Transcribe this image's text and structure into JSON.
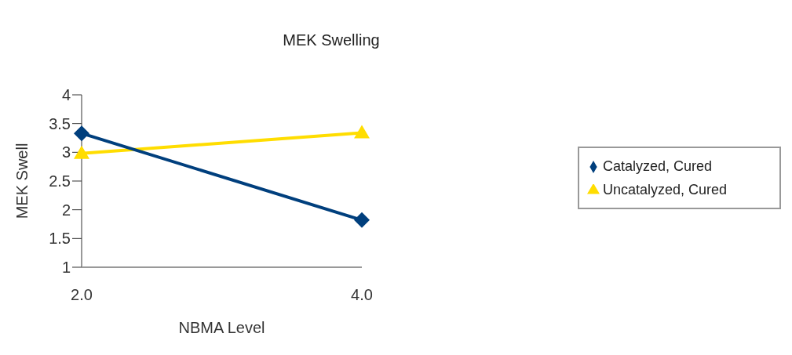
{
  "chart_data": {
    "type": "line",
    "title": "MEK Swelling",
    "xlabel": "NBMA Level",
    "ylabel": "MEK Swell",
    "categories": [
      "2.0",
      "4.0"
    ],
    "series": [
      {
        "name": "Uncatalyzed, Cured",
        "color": "#ffdd00",
        "marker": "triangle",
        "values": [
          2.98,
          3.34
        ]
      },
      {
        "name": "Catalyzed, Cured",
        "color": "#003f7d",
        "marker": "diamond",
        "values": [
          3.33,
          1.82
        ]
      }
    ],
    "ylim": [
      1,
      4
    ],
    "yticks": [
      1,
      1.5,
      2,
      2.5,
      3,
      3.5,
      4
    ],
    "grid": false,
    "legend": "right"
  }
}
